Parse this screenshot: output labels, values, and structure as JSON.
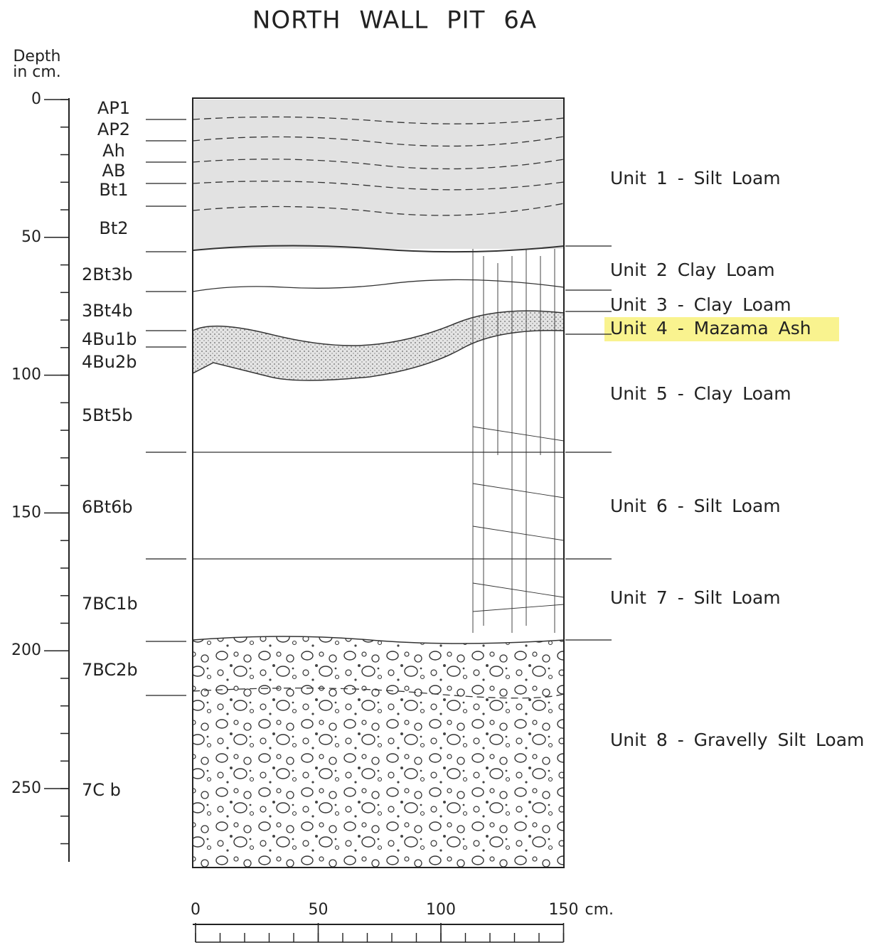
{
  "title": "NORTH WALL PIT 6A",
  "depth_axis": {
    "label": [
      "Depth",
      "in cm."
    ],
    "ticks": [
      0,
      50,
      100,
      150,
      200,
      250
    ]
  },
  "horizons": [
    "AP1",
    "AP2",
    "Ah",
    "AB",
    "Bt1",
    "Bt2",
    "2Bt3b",
    "3Bt4b",
    "4Bu1b",
    "4Bu2b",
    "5Bt5b",
    "6Bt6b",
    "7BC1b",
    "7BC2b",
    "7C b"
  ],
  "units": [
    "Unit 1 - Silt Loam",
    "Unit 2 Clay Loam",
    "Unit 3 - Clay Loam",
    "Unit 4 - Mazama Ash",
    "Unit 5 - Clay Loam",
    "Unit 6 - Silt Loam",
    "Unit 7 - Silt Loam",
    "Unit 8 - Gravelly Silt Loam"
  ],
  "width_scale": {
    "ticks": [
      0,
      50,
      100,
      150
    ],
    "unit": "cm."
  }
}
